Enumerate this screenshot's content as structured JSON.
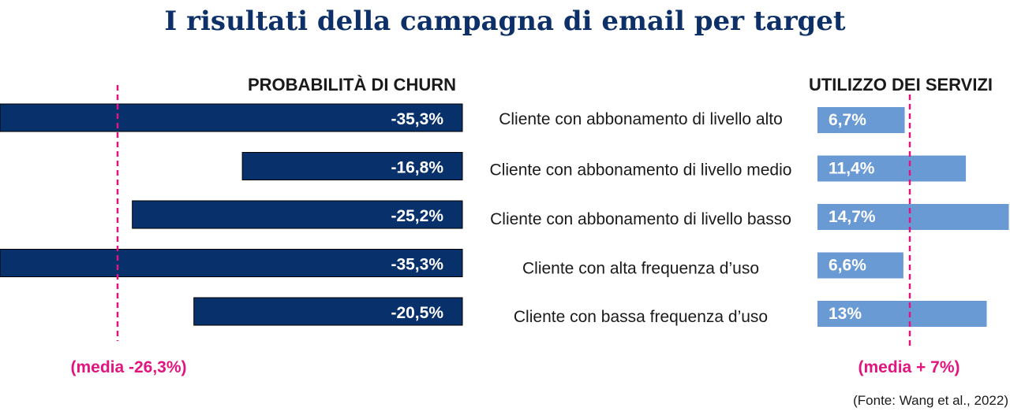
{
  "chart_data": {
    "type": "bar",
    "title": "I risultati della campagna di email per target",
    "categories": [
      "Cliente con abbonamento di livello alto",
      "Cliente con abbonamento di livello medio",
      "Cliente con abbonamento di livello basso",
      "Cliente con alta frequenza d’uso",
      "Cliente con bassa frequenza d’uso"
    ],
    "left_panel": {
      "title": "PROBABILITÀ DI CHURN",
      "values": [
        -35.3,
        -16.8,
        -25.2,
        -35.3,
        -20.5
      ],
      "labels": [
        "-35,3%",
        "-16,8%",
        "-25,2%",
        "-35,3%",
        "-20,5%"
      ],
      "average": -26.3,
      "average_label": "(media -26,3%)"
    },
    "right_panel": {
      "title": "UTILIZZO DEI SERVIZI",
      "values": [
        6.7,
        11.4,
        14.7,
        6.6,
        13
      ],
      "labels": [
        "6,7%",
        "11,4%",
        "14,7%",
        "6,6%",
        "13%"
      ],
      "average": 7,
      "average_label": "(media + 7%)"
    },
    "source": "(Fonte: Wang et al., 2022)",
    "colors": {
      "title": "#0e3068",
      "left_bar": "#08306b",
      "right_bar": "#6a9ad4",
      "average_line": "#e0157f",
      "text": "#1a1a1a"
    }
  }
}
